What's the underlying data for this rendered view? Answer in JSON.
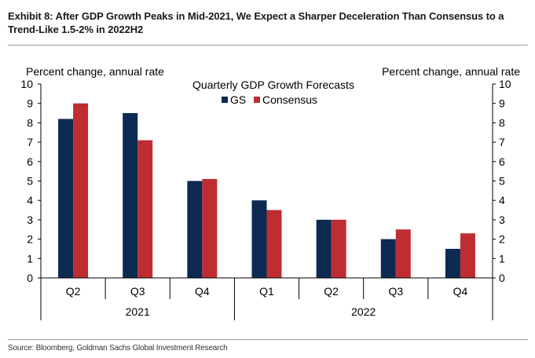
{
  "header": {
    "title": "Exhibit 8: After GDP Growth Peaks in Mid-2021, We Expect a Sharper Deceleration Than Consensus to a Trend-Like 1.5-2% in 2022H2"
  },
  "footer": {
    "source": "Source: Bloomberg, Goldman Sachs Global Investment Research"
  },
  "chart_data": {
    "type": "bar",
    "title": "Quarterly GDP Growth Forecasts",
    "ylabel_left": "Percent change, annual rate",
    "ylabel_right": "Percent change, annual rate",
    "ylim": [
      0,
      10
    ],
    "yticks": [
      "0",
      "1",
      "2",
      "3",
      "4",
      "5",
      "6",
      "7",
      "8",
      "9",
      "10"
    ],
    "categories": [
      "Q2",
      "Q3",
      "Q4",
      "Q1",
      "Q2",
      "Q3",
      "Q4"
    ],
    "groups": [
      {
        "label": "2021",
        "count": 3
      },
      {
        "label": "2022",
        "count": 4
      }
    ],
    "series": [
      {
        "name": "GS",
        "color": "#0c2a52",
        "values": [
          8.2,
          8.5,
          5.0,
          4.0,
          3.0,
          2.0,
          1.5
        ]
      },
      {
        "name": "Consensus",
        "color": "#be2d32",
        "values": [
          9.0,
          7.1,
          5.1,
          3.5,
          3.0,
          2.5,
          2.3
        ]
      }
    ],
    "legend_position": "top-center",
    "grid": false
  }
}
